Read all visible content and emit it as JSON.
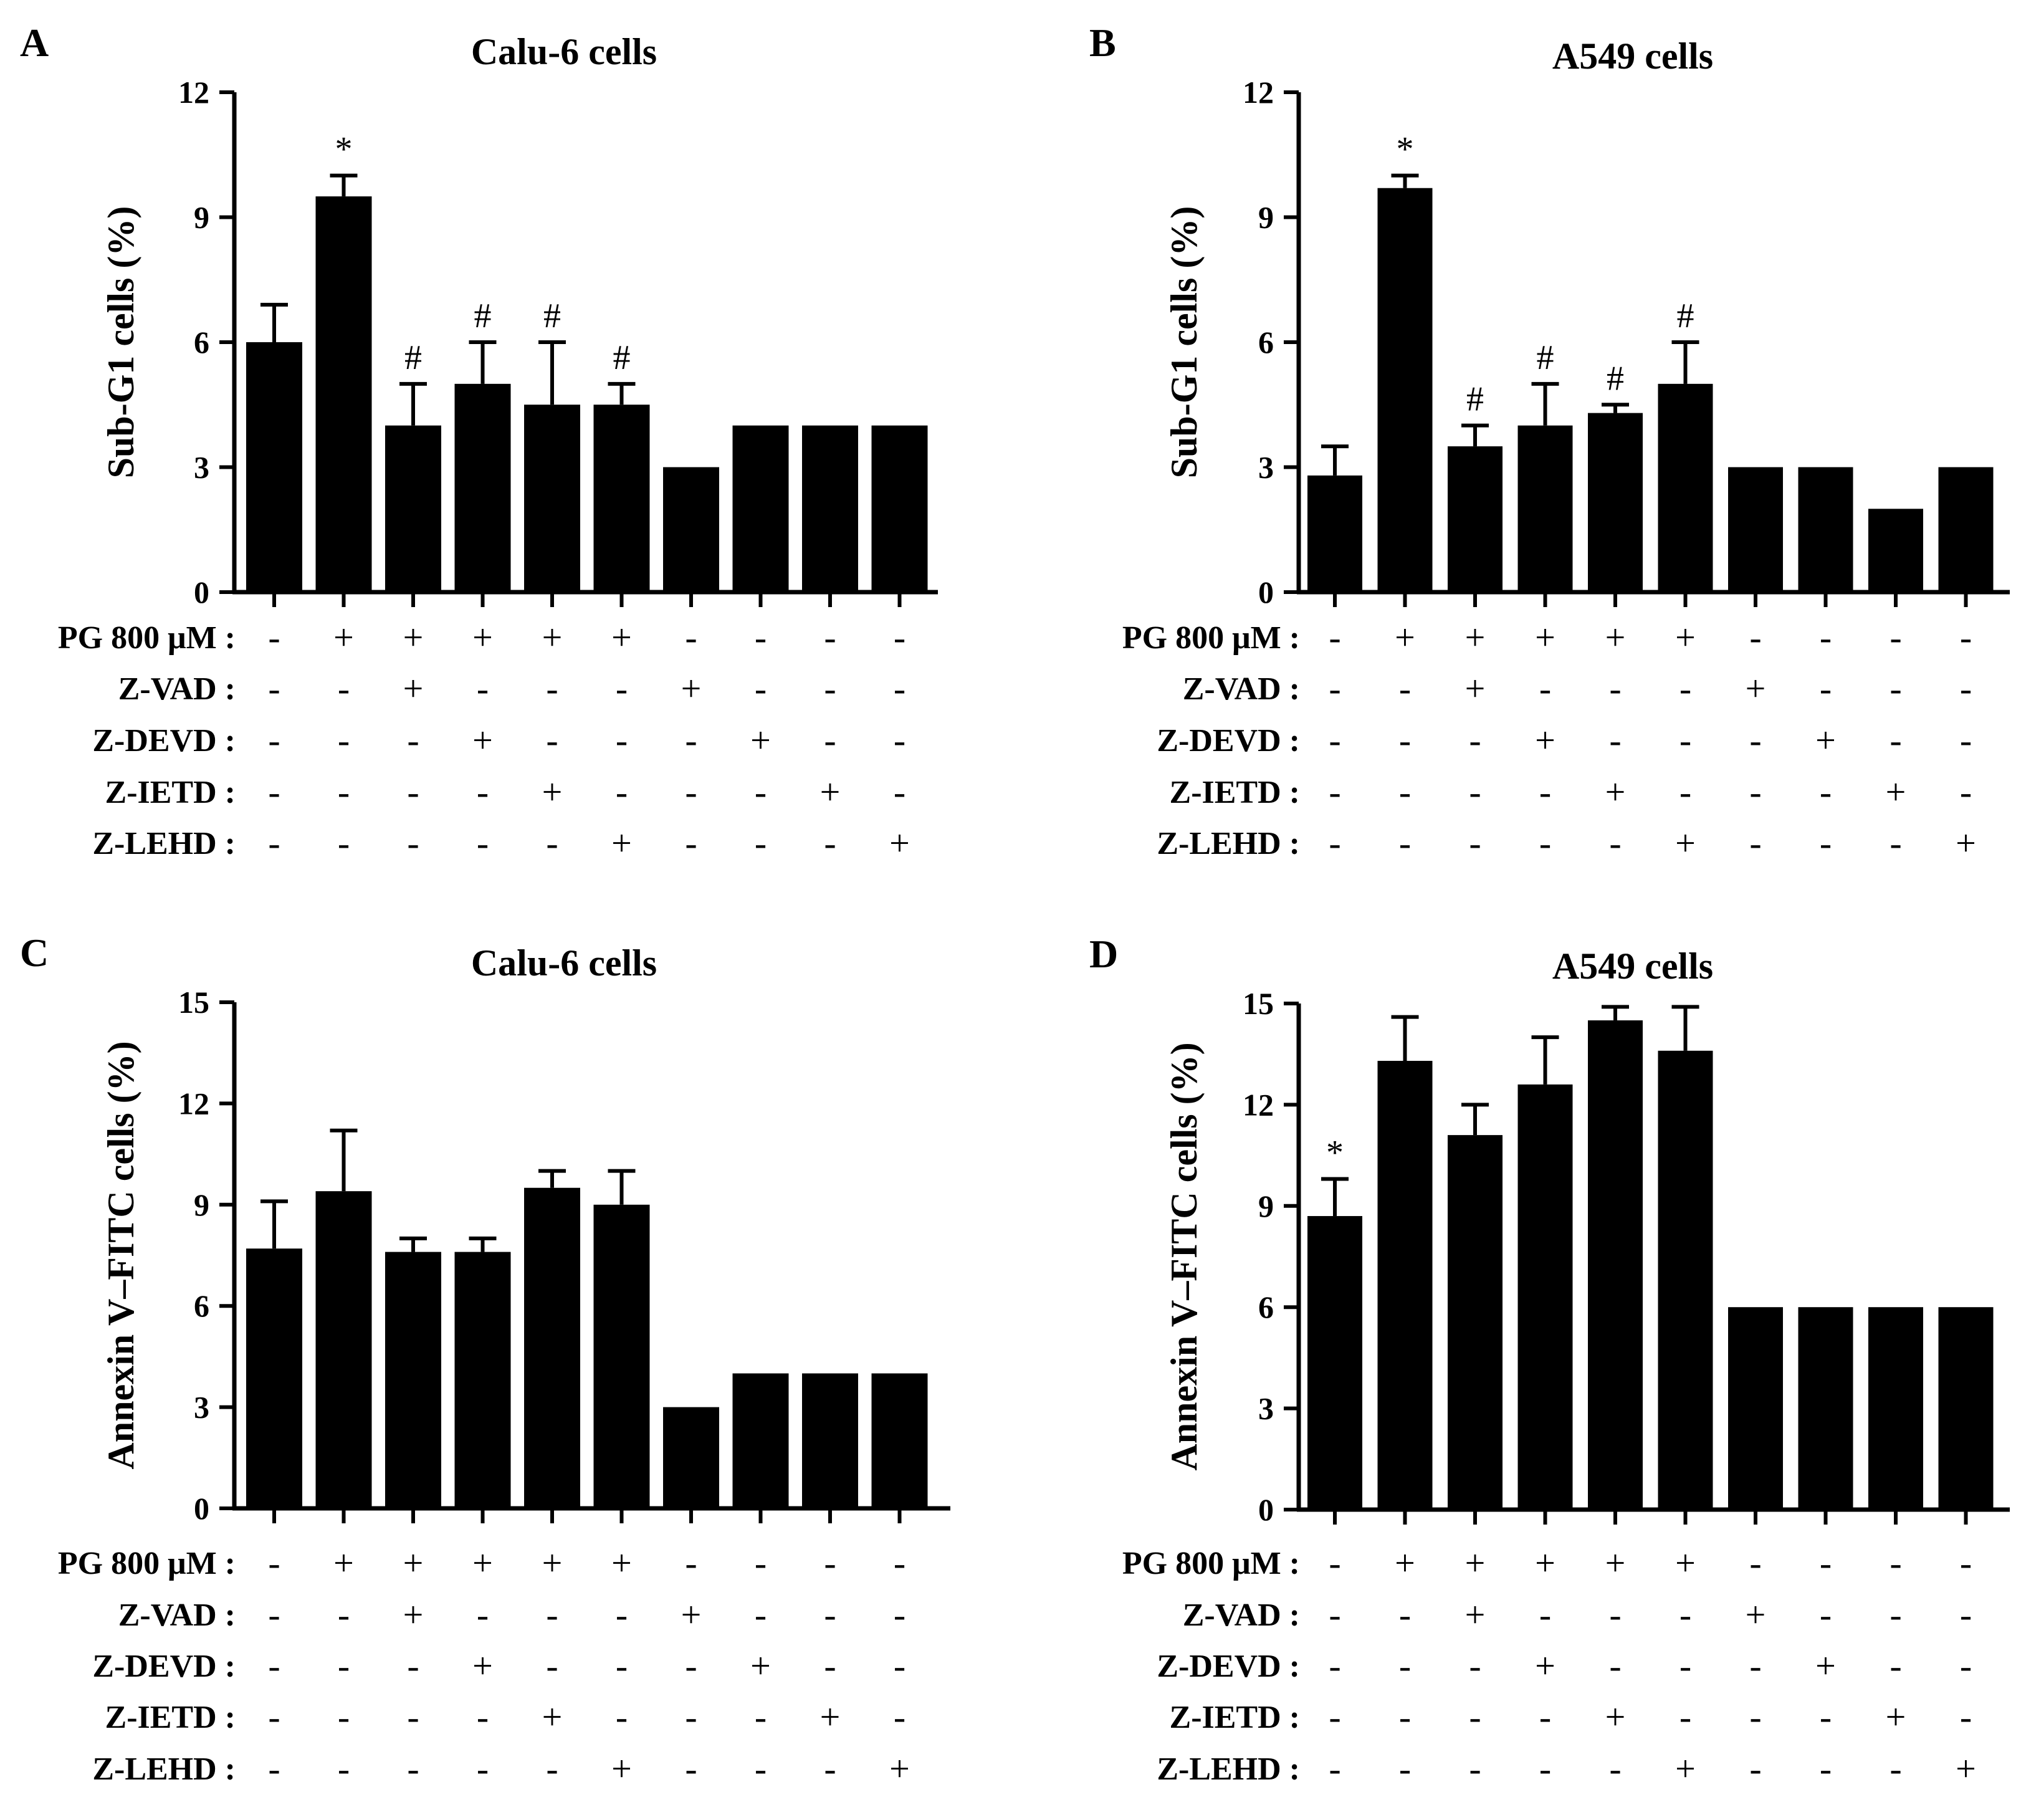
{
  "panels": [
    {
      "letter": "A",
      "title": "Calu-6 cells",
      "ylabel": "Sub-G1 cells (%)",
      "ylim": [
        0,
        12
      ],
      "yticks": [
        0,
        3,
        6,
        9,
        12
      ],
      "values": [
        6,
        9.5,
        4,
        5,
        4.5,
        4.5,
        3,
        4,
        4,
        4
      ],
      "errors": [
        0.9,
        0.5,
        1.0,
        1.0,
        1.5,
        0.5,
        0,
        0,
        0,
        0
      ],
      "marks": [
        "",
        "*",
        "#",
        "#",
        "#",
        "#",
        "",
        "",
        "",
        ""
      ]
    },
    {
      "letter": "B",
      "title": "A549 cells",
      "ylabel": "Sub-G1 cells (%)",
      "ylim": [
        0,
        12
      ],
      "yticks": [
        0,
        3,
        6,
        9,
        12
      ],
      "values": [
        2.8,
        9.7,
        3.5,
        4,
        4.3,
        5,
        3,
        3,
        2,
        3
      ],
      "errors": [
        0.7,
        0.3,
        0.5,
        1.0,
        0.2,
        1.0,
        0,
        0,
        0,
        0
      ],
      "marks": [
        "",
        "*",
        "#",
        "#",
        "#",
        "#",
        "",
        "",
        "",
        ""
      ]
    },
    {
      "letter": "C",
      "title": "Calu-6 cells",
      "ylabel": "Annexin V–FITC cells (%)",
      "ylim": [
        0,
        15
      ],
      "yticks": [
        0,
        3,
        6,
        9,
        12,
        15
      ],
      "values": [
        7.7,
        9.4,
        7.6,
        7.6,
        9.5,
        9.0,
        3,
        4,
        4,
        4
      ],
      "errors": [
        1.4,
        1.8,
        0.4,
        0.4,
        0.5,
        1.0,
        0,
        0,
        0,
        0
      ],
      "marks": [
        "",
        "",
        "",
        "",
        "",
        "",
        "",
        "",
        "",
        ""
      ]
    },
    {
      "letter": "D",
      "title": "A549 cells",
      "ylabel": "Annexin V–FITC cells (%)",
      "ylim": [
        0,
        15
      ],
      "yticks": [
        0,
        3,
        6,
        9,
        12,
        15
      ],
      "values": [
        8.7,
        13.3,
        11.1,
        12.6,
        14.5,
        13.6,
        6,
        6,
        6,
        6
      ],
      "errors": [
        1.1,
        1.3,
        0.9,
        1.4,
        0.4,
        1.3,
        0,
        0,
        0,
        0
      ],
      "marks": [
        "*",
        "",
        "",
        "",
        "",
        "",
        "",
        "",
        "",
        ""
      ]
    }
  ],
  "treatment_rows": [
    {
      "label": "PG 800 μM :",
      "symbols": [
        "-",
        "+",
        "+",
        "+",
        "+",
        "+",
        "-",
        "-",
        "-",
        "-"
      ]
    },
    {
      "label": "Z-VAD :",
      "symbols": [
        "-",
        "-",
        "+",
        "-",
        "-",
        "-",
        "+",
        "-",
        "-",
        "-"
      ]
    },
    {
      "label": "Z-DEVD :",
      "symbols": [
        "-",
        "-",
        "-",
        "+",
        "-",
        "-",
        "-",
        "+",
        "-",
        "-"
      ]
    },
    {
      "label": "Z-IETD :",
      "symbols": [
        "-",
        "-",
        "-",
        "-",
        "+",
        "-",
        "-",
        "-",
        "+",
        "-"
      ]
    },
    {
      "label": "Z-LEHD :",
      "symbols": [
        "-",
        "-",
        "-",
        "-",
        "-",
        "+",
        "-",
        "-",
        "-",
        "+"
      ]
    }
  ],
  "chart_data": [
    {
      "type": "bar",
      "title": "Calu-6 cells",
      "ylabel": "Sub-G1 cells (%)",
      "ylim": [
        0,
        12
      ],
      "categories": [
        "1",
        "2",
        "3",
        "4",
        "5",
        "6",
        "7",
        "8",
        "9",
        "10"
      ],
      "values": [
        6,
        9.5,
        4,
        5,
        4.5,
        4.5,
        3,
        4,
        4,
        4
      ],
      "errors": [
        0.9,
        0.5,
        1.0,
        1.0,
        1.5,
        0.5,
        0,
        0,
        0,
        0
      ],
      "annotations": [
        "",
        "*",
        "#",
        "#",
        "#",
        "#",
        "",
        "",
        "",
        ""
      ]
    },
    {
      "type": "bar",
      "title": "A549 cells",
      "ylabel": "Sub-G1 cells (%)",
      "ylim": [
        0,
        12
      ],
      "categories": [
        "1",
        "2",
        "3",
        "4",
        "5",
        "6",
        "7",
        "8",
        "9",
        "10"
      ],
      "values": [
        2.8,
        9.7,
        3.5,
        4,
        4.3,
        5,
        3,
        3,
        2,
        3
      ],
      "errors": [
        0.7,
        0.3,
        0.5,
        1.0,
        0.2,
        1.0,
        0,
        0,
        0,
        0
      ],
      "annotations": [
        "",
        "*",
        "#",
        "#",
        "#",
        "#",
        "",
        "",
        "",
        ""
      ]
    },
    {
      "type": "bar",
      "title": "Calu-6 cells",
      "ylabel": "Annexin V–FITC cells (%)",
      "ylim": [
        0,
        15
      ],
      "categories": [
        "1",
        "2",
        "3",
        "4",
        "5",
        "6",
        "7",
        "8",
        "9",
        "10"
      ],
      "values": [
        7.7,
        9.4,
        7.6,
        7.6,
        9.5,
        9.0,
        3,
        4,
        4,
        4
      ],
      "errors": [
        1.4,
        1.8,
        0.4,
        0.4,
        0.5,
        1.0,
        0,
        0,
        0,
        0
      ],
      "annotations": [
        "",
        "",
        "",
        "",
        "",
        "",
        "",
        "",
        "",
        ""
      ]
    },
    {
      "type": "bar",
      "title": "A549 cells",
      "ylabel": "Annexin V–FITC cells (%)",
      "ylim": [
        0,
        15
      ],
      "categories": [
        "1",
        "2",
        "3",
        "4",
        "5",
        "6",
        "7",
        "8",
        "9",
        "10"
      ],
      "values": [
        8.7,
        13.3,
        11.1,
        12.6,
        14.5,
        13.6,
        6,
        6,
        6,
        6
      ],
      "errors": [
        1.1,
        1.3,
        0.9,
        1.4,
        0.4,
        1.3,
        0,
        0,
        0,
        0
      ],
      "annotations": [
        "*",
        "",
        "",
        "",
        "",
        "",
        "",
        "",
        "",
        ""
      ]
    }
  ]
}
